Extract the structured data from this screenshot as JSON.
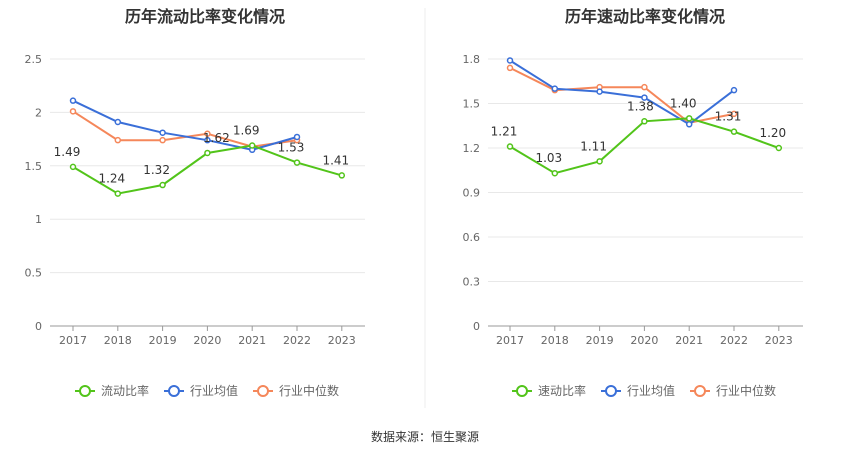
{
  "source": "数据来源：恒生聚源",
  "colors": {
    "main": "#52c41a",
    "avg": "#3a6fd8",
    "median": "#f5875a",
    "axis": "#666666",
    "grid": "#e8e8e8",
    "title": "#333333",
    "label": "#333333"
  },
  "chart_data": [
    {
      "type": "line",
      "title": "历年流动比率变化情况",
      "categories": [
        "2017",
        "2018",
        "2019",
        "2020",
        "2021",
        "2022",
        "2023"
      ],
      "ylim": [
        0,
        2.5
      ],
      "yticks": [
        "0",
        "0.5",
        "1",
        "1.5",
        "2",
        "2.5"
      ],
      "grid": true,
      "legend_position": "bottom",
      "series": [
        {
          "name": "流动比率",
          "color": "#52c41a",
          "values": [
            1.49,
            1.24,
            1.32,
            1.62,
            1.69,
            1.53,
            1.41
          ],
          "labels": [
            "1.49",
            "1.24",
            "1.32",
            "1.62",
            "1.69",
            "1.53",
            "1.41"
          ]
        },
        {
          "name": "行业均值",
          "color": "#3a6fd8",
          "values": [
            2.11,
            1.91,
            1.81,
            1.74,
            1.65,
            1.77,
            null
          ]
        },
        {
          "name": "行业中位数",
          "color": "#f5875a",
          "values": [
            2.01,
            1.74,
            1.74,
            1.8,
            1.68,
            1.74,
            null
          ]
        }
      ]
    },
    {
      "type": "line",
      "title": "历年速动比率变化情况",
      "categories": [
        "2017",
        "2018",
        "2019",
        "2020",
        "2021",
        "2022",
        "2023"
      ],
      "ylim": [
        0,
        1.8
      ],
      "yticks": [
        "0",
        "0.3",
        "0.6",
        "0.9",
        "1.2",
        "1.5",
        "1.8"
      ],
      "grid": true,
      "legend_position": "bottom",
      "series": [
        {
          "name": "速动比率",
          "color": "#52c41a",
          "values": [
            1.21,
            1.03,
            1.11,
            1.38,
            1.4,
            1.31,
            1.2
          ],
          "labels": [
            "1.21",
            "1.03",
            "1.11",
            "1.38",
            "1.40",
            "1.31",
            "1.20"
          ]
        },
        {
          "name": "行业均值",
          "color": "#3a6fd8",
          "values": [
            1.79,
            1.6,
            1.58,
            1.54,
            1.36,
            1.59,
            null
          ]
        },
        {
          "name": "行业中位数",
          "color": "#f5875a",
          "values": [
            1.74,
            1.59,
            1.61,
            1.61,
            1.37,
            1.43,
            null
          ]
        }
      ]
    }
  ]
}
